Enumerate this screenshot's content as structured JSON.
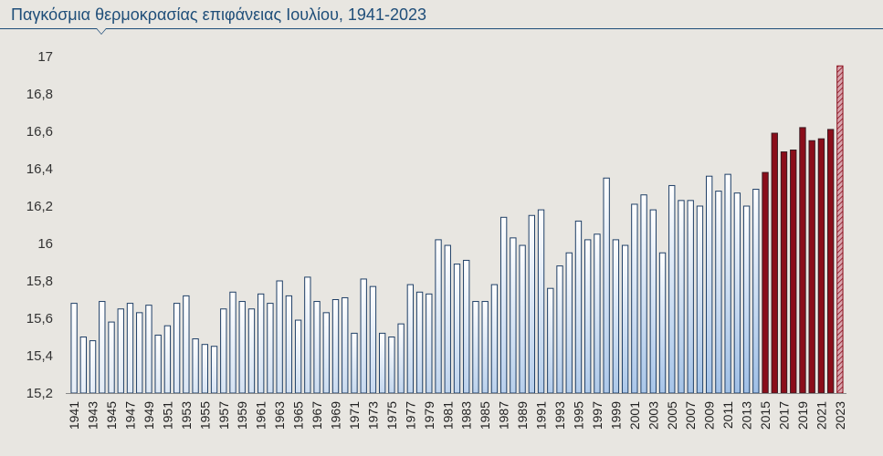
{
  "title": "Παγκόσμια θερμοκρασίας επιφάνειας Ιουλίου, 1941-2023",
  "colors": {
    "background": "#e8e6e1",
    "title": "#1f4e79",
    "bar_outline": "#1f3f66",
    "bar_fill_top": "#ffffff",
    "bar_fill_bottom_early": "#e6edf6",
    "bar_fill_bottom_late": "#9fbfe6",
    "recent_red": "#8b0d1a",
    "latest_fill": "#d9a7b0"
  },
  "chart_data": {
    "type": "bar",
    "title": "Παγκόσμια θερμοκρασίας επιφάνειας Ιουλίου, 1941-2023",
    "xlabel": "",
    "ylabel": "",
    "ylim": [
      15.2,
      17.0
    ],
    "yticks": [
      "15,2",
      "15,4",
      "15,6",
      "15,8",
      "16",
      "16,2",
      "16,4",
      "16,6",
      "16,8",
      "17"
    ],
    "ytick_values": [
      15.2,
      15.4,
      15.6,
      15.8,
      16.0,
      16.2,
      16.4,
      16.6,
      16.8,
      17.0
    ],
    "grid": false,
    "categories": [
      "1941",
      "1942",
      "1943",
      "1944",
      "1945",
      "1946",
      "1947",
      "1948",
      "1949",
      "1950",
      "1951",
      "1952",
      "1953",
      "1954",
      "1955",
      "1956",
      "1957",
      "1958",
      "1959",
      "1960",
      "1961",
      "1962",
      "1963",
      "1964",
      "1965",
      "1966",
      "1967",
      "1968",
      "1969",
      "1970",
      "1971",
      "1972",
      "1973",
      "1974",
      "1975",
      "1976",
      "1977",
      "1978",
      "1979",
      "1980",
      "1981",
      "1982",
      "1983",
      "1984",
      "1985",
      "1986",
      "1987",
      "1988",
      "1989",
      "1990",
      "1991",
      "1992",
      "1993",
      "1994",
      "1995",
      "1996",
      "1997",
      "1998",
      "1999",
      "2000",
      "2001",
      "2002",
      "2003",
      "2004",
      "2005",
      "2006",
      "2007",
      "2008",
      "2009",
      "2010",
      "2011",
      "2012",
      "2013",
      "2014",
      "2015",
      "2016",
      "2017",
      "2018",
      "2019",
      "2020",
      "2021",
      "2022",
      "2023"
    ],
    "tick_labels": [
      "1941",
      "1943",
      "1945",
      "1947",
      "1949",
      "1951",
      "1953",
      "1955",
      "1957",
      "1959",
      "1961",
      "1963",
      "1965",
      "1967",
      "1969",
      "1971",
      "1973",
      "1975",
      "1977",
      "1979",
      "1981",
      "1983",
      "1985",
      "1987",
      "1989",
      "1991",
      "1993",
      "1995",
      "1997",
      "1999",
      "2001",
      "2003",
      "2005",
      "2007",
      "2009",
      "2011",
      "2013",
      "2015",
      "2017",
      "2019",
      "2021",
      "2023"
    ],
    "values": [
      15.68,
      15.5,
      15.48,
      15.69,
      15.58,
      15.65,
      15.68,
      15.63,
      15.67,
      15.51,
      15.56,
      15.68,
      15.72,
      15.49,
      15.46,
      15.45,
      15.65,
      15.74,
      15.69,
      15.65,
      15.73,
      15.68,
      15.8,
      15.72,
      15.59,
      15.82,
      15.69,
      15.63,
      15.7,
      15.71,
      15.52,
      15.81,
      15.77,
      15.52,
      15.5,
      15.57,
      15.78,
      15.74,
      15.73,
      16.02,
      15.99,
      15.89,
      15.91,
      15.69,
      15.69,
      15.78,
      16.14,
      16.03,
      15.99,
      16.15,
      16.18,
      15.76,
      15.88,
      15.95,
      16.12,
      16.02,
      16.05,
      16.35,
      16.02,
      15.99,
      16.21,
      16.26,
      16.18,
      15.95,
      16.31,
      16.23,
      16.23,
      16.2,
      16.36,
      16.28,
      16.37,
      16.27,
      16.2,
      16.29,
      16.38,
      16.59,
      16.49,
      16.5,
      16.62,
      16.55,
      16.56,
      16.61,
      16.95
    ],
    "series_styles": {
      "outlined_blue": "1941-2014",
      "solid_red": "2015-2022",
      "hatched": "2023"
    }
  }
}
